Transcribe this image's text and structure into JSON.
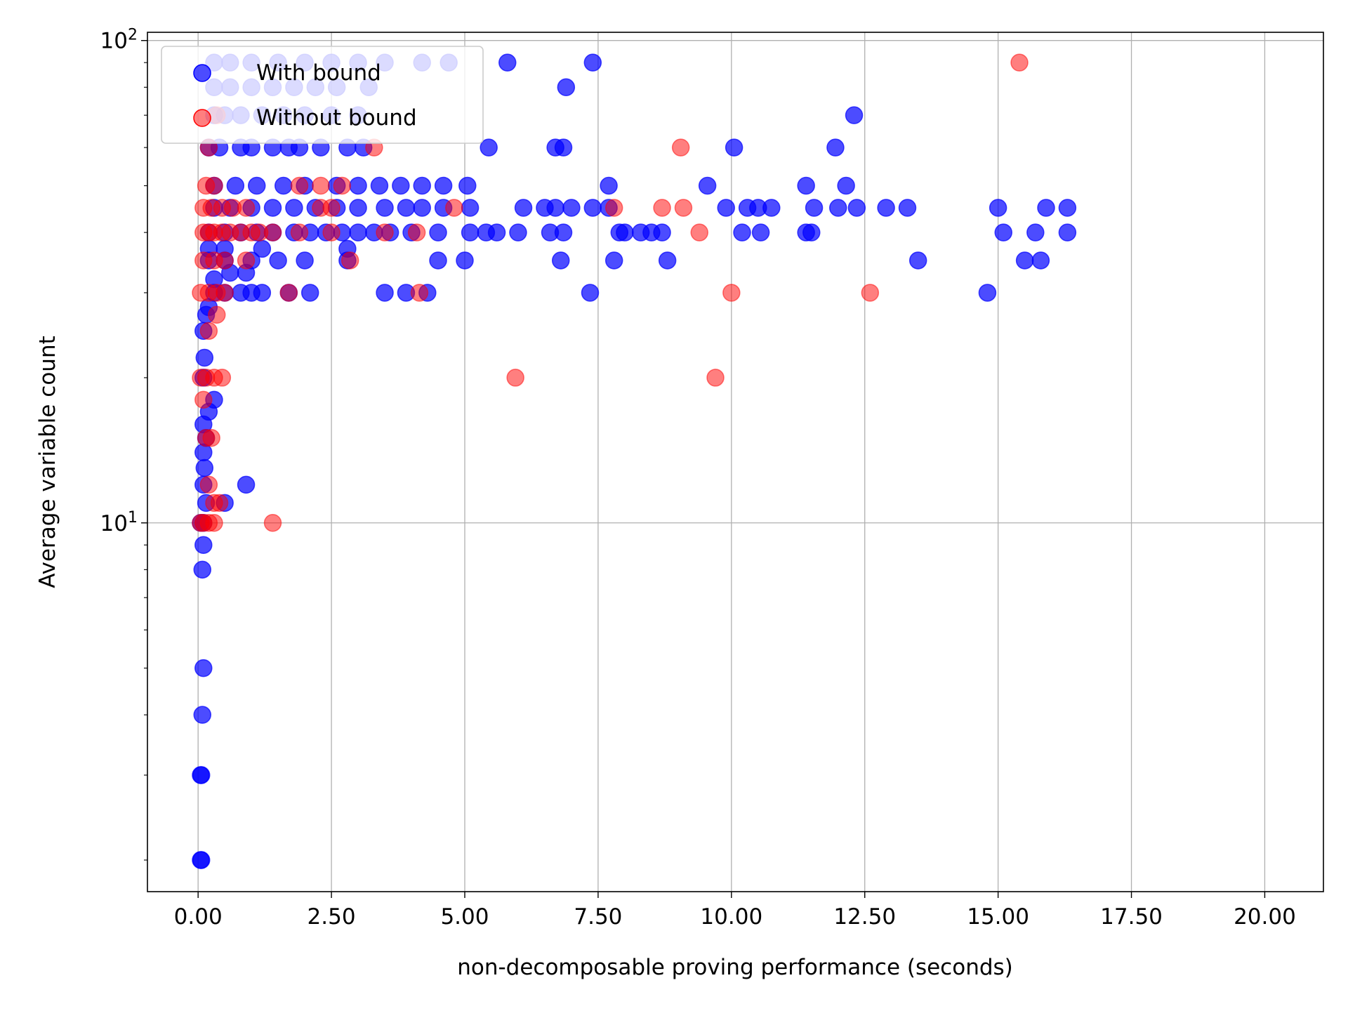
{
  "chart_data": {
    "type": "scatter",
    "title": "",
    "xlabel": "non-decomposable proving performance (seconds)",
    "ylabel": "Average variable count",
    "xlim": [
      -0.95,
      21.1
    ],
    "ylim": [
      1.72,
      104
    ],
    "yscale": "log",
    "grid": true,
    "legend_placement": "upper left",
    "x_ticks": [
      0,
      2.5,
      5,
      7.5,
      10,
      12.5,
      15,
      17.5,
      20
    ],
    "x_tick_labels": [
      "0.00",
      "2.50",
      "5.00",
      "7.50",
      "10.00",
      "12.50",
      "15.00",
      "17.50",
      "20.00"
    ],
    "y_ticks": [
      10,
      100
    ],
    "y_tick_bases": [
      "10",
      "10"
    ],
    "y_tick_exponents": [
      "1",
      "2"
    ],
    "series": [
      {
        "name": "With bound",
        "color": "#0000ff",
        "points": [
          [
            0.05,
            2
          ],
          [
            0.06,
            2
          ],
          [
            0.05,
            3
          ],
          [
            0.06,
            3
          ],
          [
            0.08,
            4
          ],
          [
            0.1,
            5
          ],
          [
            0.08,
            8
          ],
          [
            0.1,
            9
          ],
          [
            0.05,
            10
          ],
          [
            0.1,
            10
          ],
          [
            0.15,
            11
          ],
          [
            0.5,
            11
          ],
          [
            0.9,
            12
          ],
          [
            0.1,
            12
          ],
          [
            0.12,
            13
          ],
          [
            0.1,
            14
          ],
          [
            0.15,
            15
          ],
          [
            0.1,
            16
          ],
          [
            0.2,
            17
          ],
          [
            0.3,
            18
          ],
          [
            0.1,
            20
          ],
          [
            0.12,
            22
          ],
          [
            0.1,
            25
          ],
          [
            0.15,
            27
          ],
          [
            0.2,
            28
          ],
          [
            0.3,
            30
          ],
          [
            0.5,
            30
          ],
          [
            0.8,
            30
          ],
          [
            1.0,
            30
          ],
          [
            1.2,
            30
          ],
          [
            1.7,
            30
          ],
          [
            2.1,
            30
          ],
          [
            3.5,
            30
          ],
          [
            3.9,
            30
          ],
          [
            4.3,
            30
          ],
          [
            7.35,
            30
          ],
          [
            14.8,
            30
          ],
          [
            0.3,
            32
          ],
          [
            0.6,
            33
          ],
          [
            0.9,
            33
          ],
          [
            0.2,
            35
          ],
          [
            0.5,
            35
          ],
          [
            1.0,
            35
          ],
          [
            1.5,
            35
          ],
          [
            2.0,
            35
          ],
          [
            2.8,
            35
          ],
          [
            4.5,
            35
          ],
          [
            5.0,
            35
          ],
          [
            6.8,
            35
          ],
          [
            7.8,
            35
          ],
          [
            8.8,
            35
          ],
          [
            13.5,
            35
          ],
          [
            15.5,
            35
          ],
          [
            15.8,
            35
          ],
          [
            0.2,
            37
          ],
          [
            0.5,
            37
          ],
          [
            1.2,
            37
          ],
          [
            2.8,
            37
          ],
          [
            0.2,
            40
          ],
          [
            0.5,
            40
          ],
          [
            0.8,
            40
          ],
          [
            1.1,
            40
          ],
          [
            1.4,
            40
          ],
          [
            1.8,
            40
          ],
          [
            2.1,
            40
          ],
          [
            2.4,
            40
          ],
          [
            2.7,
            40
          ],
          [
            3.0,
            40
          ],
          [
            3.3,
            40
          ],
          [
            3.6,
            40
          ],
          [
            4.0,
            40
          ],
          [
            4.5,
            40
          ],
          [
            5.1,
            40
          ],
          [
            5.4,
            40
          ],
          [
            5.6,
            40
          ],
          [
            6.0,
            40
          ],
          [
            6.6,
            40
          ],
          [
            6.85,
            40
          ],
          [
            7.9,
            40
          ],
          [
            8.0,
            40
          ],
          [
            8.3,
            40
          ],
          [
            8.5,
            40
          ],
          [
            8.7,
            40
          ],
          [
            10.2,
            40
          ],
          [
            10.55,
            40
          ],
          [
            11.4,
            40
          ],
          [
            11.5,
            40
          ],
          [
            15.1,
            40
          ],
          [
            15.7,
            40
          ],
          [
            16.3,
            40
          ],
          [
            0.3,
            45
          ],
          [
            0.6,
            45
          ],
          [
            1.0,
            45
          ],
          [
            1.4,
            45
          ],
          [
            1.8,
            45
          ],
          [
            2.2,
            45
          ],
          [
            2.6,
            45
          ],
          [
            3.0,
            45
          ],
          [
            3.5,
            45
          ],
          [
            3.9,
            45
          ],
          [
            4.2,
            45
          ],
          [
            4.6,
            45
          ],
          [
            5.1,
            45
          ],
          [
            6.1,
            45
          ],
          [
            6.5,
            45
          ],
          [
            6.7,
            45
          ],
          [
            7.0,
            45
          ],
          [
            7.4,
            45
          ],
          [
            7.7,
            45
          ],
          [
            9.9,
            45
          ],
          [
            10.3,
            45
          ],
          [
            10.5,
            45
          ],
          [
            10.75,
            45
          ],
          [
            11.55,
            45
          ],
          [
            12.0,
            45
          ],
          [
            12.35,
            45
          ],
          [
            12.9,
            45
          ],
          [
            13.3,
            45
          ],
          [
            15.0,
            45
          ],
          [
            15.9,
            45
          ],
          [
            16.3,
            45
          ],
          [
            0.3,
            50
          ],
          [
            0.7,
            50
          ],
          [
            1.1,
            50
          ],
          [
            1.6,
            50
          ],
          [
            2.0,
            50
          ],
          [
            2.6,
            50
          ],
          [
            3.0,
            50
          ],
          [
            3.4,
            50
          ],
          [
            3.8,
            50
          ],
          [
            4.2,
            50
          ],
          [
            4.6,
            50
          ],
          [
            5.05,
            50
          ],
          [
            7.7,
            50
          ],
          [
            9.55,
            50
          ],
          [
            11.4,
            50
          ],
          [
            12.15,
            50
          ],
          [
            0.2,
            60
          ],
          [
            0.4,
            60
          ],
          [
            0.8,
            60
          ],
          [
            1.0,
            60
          ],
          [
            1.4,
            60
          ],
          [
            1.7,
            60
          ],
          [
            1.9,
            60
          ],
          [
            2.3,
            60
          ],
          [
            2.8,
            60
          ],
          [
            3.1,
            60
          ],
          [
            5.45,
            60
          ],
          [
            6.7,
            60
          ],
          [
            6.85,
            60
          ],
          [
            10.05,
            60
          ],
          [
            11.95,
            60
          ],
          [
            0.3,
            70
          ],
          [
            0.5,
            70
          ],
          [
            0.8,
            70
          ],
          [
            1.2,
            70
          ],
          [
            1.6,
            70
          ],
          [
            2.0,
            70
          ],
          [
            2.5,
            70
          ],
          [
            3.0,
            70
          ],
          [
            12.3,
            70
          ],
          [
            0.3,
            80
          ],
          [
            0.6,
            80
          ],
          [
            1.0,
            80
          ],
          [
            1.4,
            80
          ],
          [
            1.8,
            80
          ],
          [
            2.2,
            80
          ],
          [
            2.6,
            80
          ],
          [
            3.2,
            80
          ],
          [
            6.9,
            80
          ],
          [
            0.3,
            90
          ],
          [
            0.6,
            90
          ],
          [
            1.0,
            90
          ],
          [
            1.5,
            90
          ],
          [
            2.0,
            90
          ],
          [
            2.5,
            90
          ],
          [
            3.0,
            90
          ],
          [
            3.5,
            90
          ],
          [
            4.2,
            90
          ],
          [
            4.7,
            90
          ],
          [
            5.8,
            90
          ],
          [
            7.4,
            90
          ]
        ]
      },
      {
        "name": "Without bound",
        "color": "#ff0000",
        "points": [
          [
            0.05,
            10
          ],
          [
            0.1,
            10
          ],
          [
            0.2,
            10
          ],
          [
            0.3,
            10
          ],
          [
            1.4,
            10
          ],
          [
            0.3,
            11
          ],
          [
            0.4,
            11
          ],
          [
            0.2,
            12
          ],
          [
            0.15,
            15
          ],
          [
            0.25,
            15
          ],
          [
            0.1,
            18
          ],
          [
            0.05,
            20
          ],
          [
            0.15,
            20
          ],
          [
            0.3,
            20
          ],
          [
            0.45,
            20
          ],
          [
            5.95,
            20
          ],
          [
            9.7,
            20
          ],
          [
            0.2,
            25
          ],
          [
            0.35,
            27
          ],
          [
            0.05,
            30
          ],
          [
            0.2,
            30
          ],
          [
            0.35,
            30
          ],
          [
            0.5,
            30
          ],
          [
            1.7,
            30
          ],
          [
            4.15,
            30
          ],
          [
            10.0,
            30
          ],
          [
            12.6,
            30
          ],
          [
            0.1,
            35
          ],
          [
            0.3,
            35
          ],
          [
            0.5,
            35
          ],
          [
            0.9,
            35
          ],
          [
            2.85,
            35
          ],
          [
            0.1,
            40
          ],
          [
            0.2,
            40
          ],
          [
            0.3,
            40
          ],
          [
            0.45,
            40
          ],
          [
            0.6,
            40
          ],
          [
            0.8,
            40
          ],
          [
            1.0,
            40
          ],
          [
            1.15,
            40
          ],
          [
            1.4,
            40
          ],
          [
            1.9,
            40
          ],
          [
            2.5,
            40
          ],
          [
            3.5,
            40
          ],
          [
            4.1,
            40
          ],
          [
            9.4,
            40
          ],
          [
            0.1,
            45
          ],
          [
            0.25,
            45
          ],
          [
            0.45,
            45
          ],
          [
            0.65,
            45
          ],
          [
            0.9,
            45
          ],
          [
            2.3,
            45
          ],
          [
            2.5,
            45
          ],
          [
            4.8,
            45
          ],
          [
            7.8,
            45
          ],
          [
            8.7,
            45
          ],
          [
            9.1,
            45
          ],
          [
            0.15,
            50
          ],
          [
            0.3,
            50
          ],
          [
            1.9,
            50
          ],
          [
            2.3,
            50
          ],
          [
            2.7,
            50
          ],
          [
            0.2,
            60
          ],
          [
            3.3,
            60
          ],
          [
            9.05,
            60
          ],
          [
            0.35,
            70
          ],
          [
            15.4,
            90
          ]
        ]
      }
    ]
  }
}
